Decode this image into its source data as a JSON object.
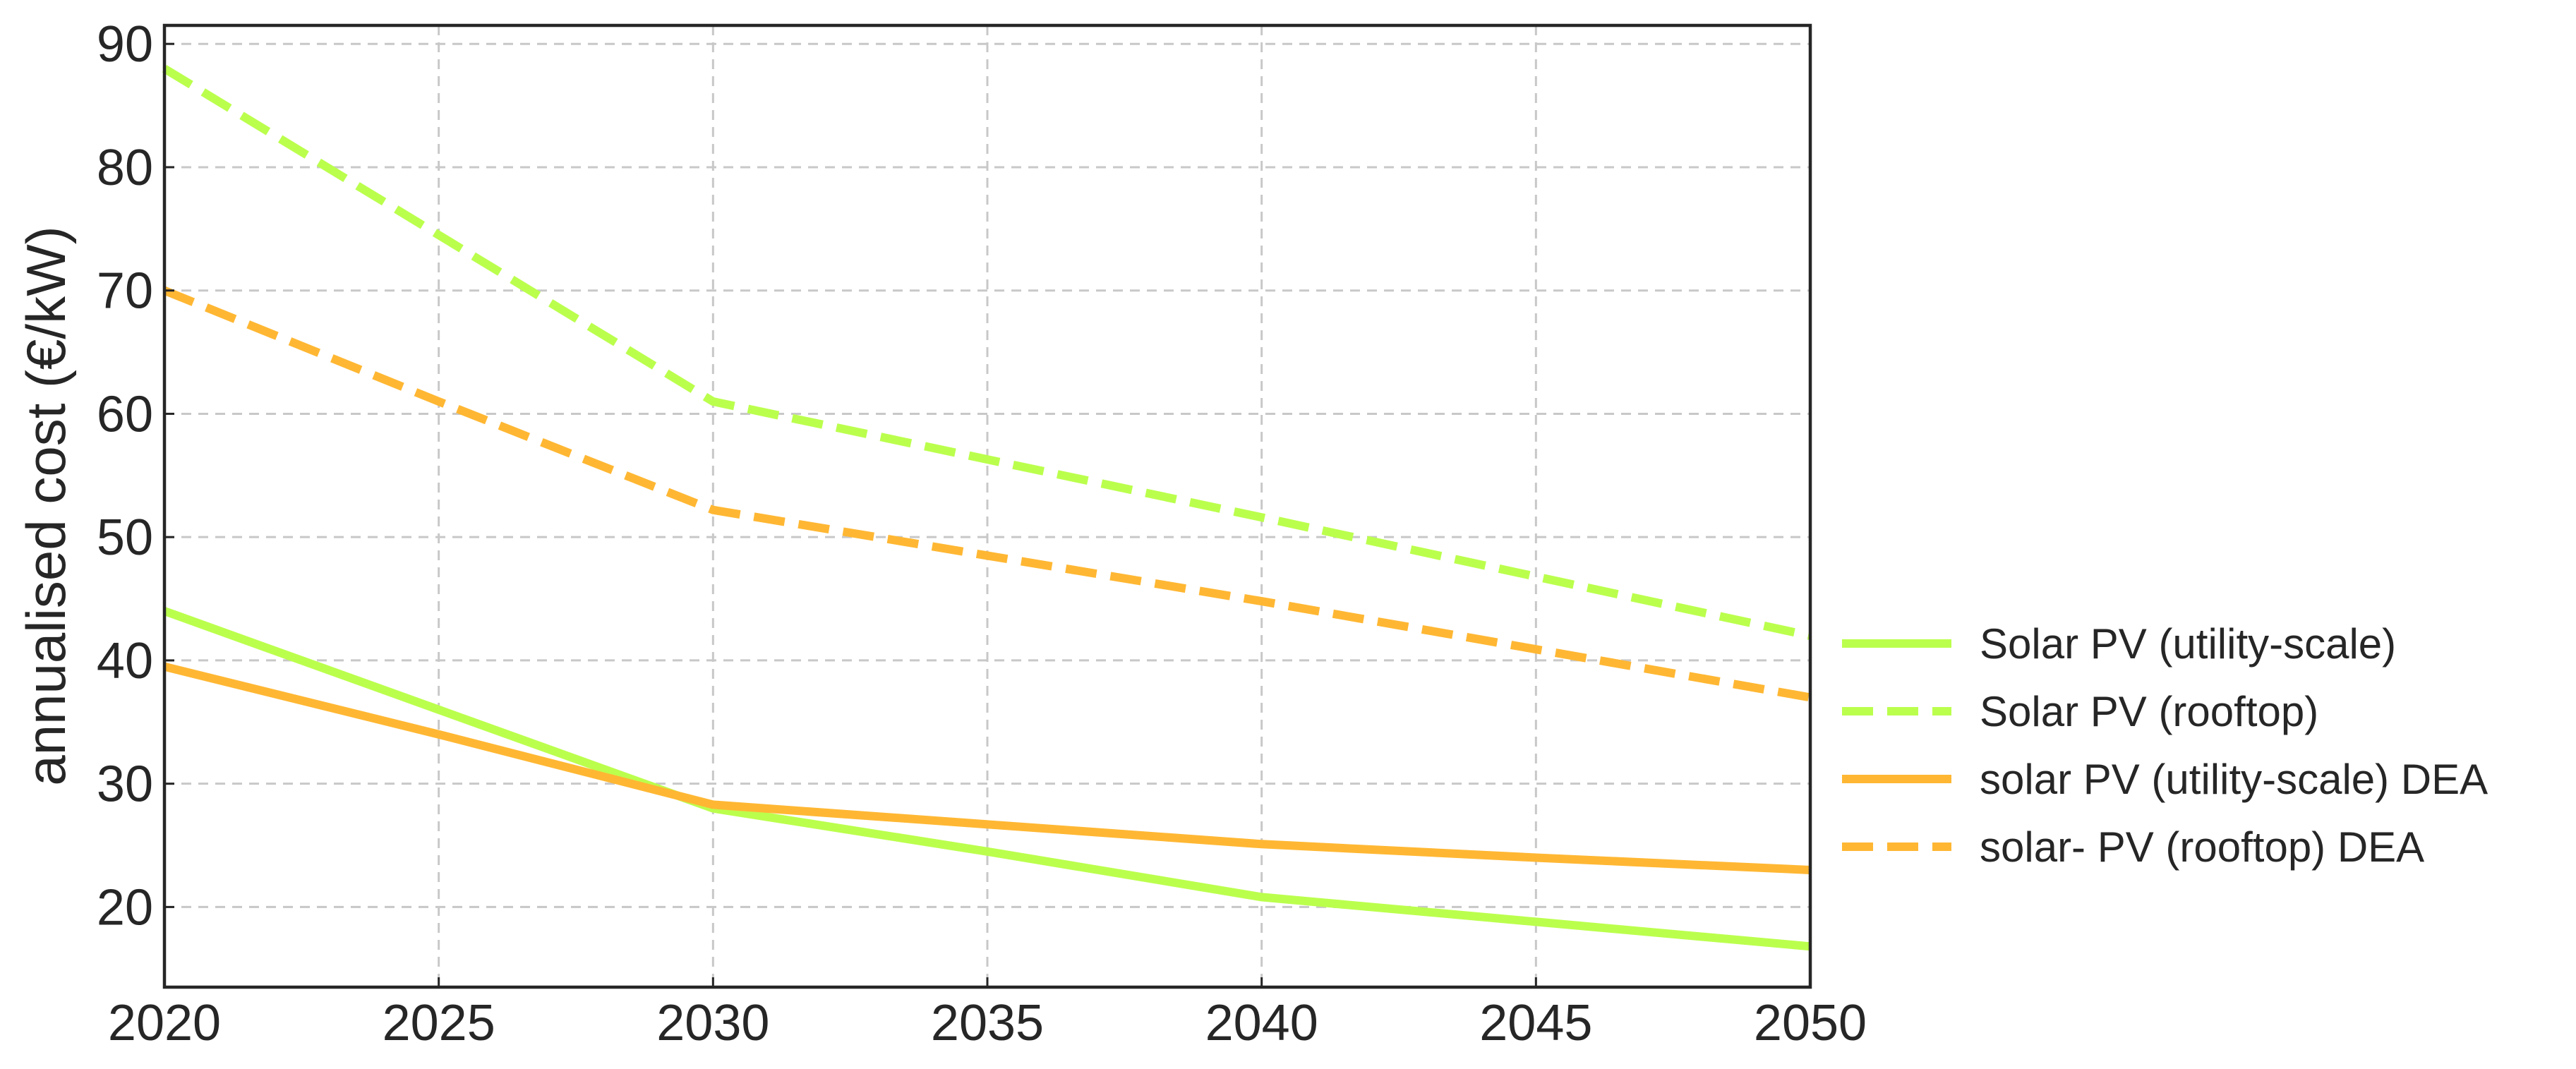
{
  "chart_data": {
    "type": "line",
    "ylabel": "annualised cost (€/kW)",
    "xlabel": "",
    "xlim": [
      2020,
      2050
    ],
    "ylim": [
      13.5,
      91.5
    ],
    "xticks": [
      2020,
      2025,
      2030,
      2035,
      2040,
      2045,
      2050
    ],
    "yticks": [
      20,
      30,
      40,
      50,
      60,
      70,
      80,
      90
    ],
    "grid": true,
    "legend_position": "right",
    "series": [
      {
        "name": "Solar PV (utility-scale)",
        "color": "#bbff4d",
        "style": "solid",
        "x": [
          2020,
          2025,
          2030,
          2035,
          2040,
          2045,
          2050
        ],
        "y": [
          44.0,
          36.0,
          28.0,
          24.5,
          20.8,
          18.8,
          16.8
        ]
      },
      {
        "name": "Solar PV (rooftop)",
        "color": "#bbff4d",
        "style": "dashed",
        "x": [
          2020,
          2025,
          2030,
          2035,
          2040,
          2045,
          2050
        ],
        "y": [
          88.0,
          74.5,
          61.0,
          56.3,
          51.6,
          46.8,
          42.0
        ]
      },
      {
        "name": "solar PV (utility-scale) DEA",
        "color": "#ffb733",
        "style": "solid",
        "x": [
          2020,
          2025,
          2030,
          2035,
          2040,
          2045,
          2050
        ],
        "y": [
          39.5,
          34.0,
          28.3,
          26.7,
          25.1,
          24.0,
          23.0
        ]
      },
      {
        "name": "solar- PV (rooftop) DEA",
        "color": "#ffb733",
        "style": "dashed",
        "x": [
          2020,
          2025,
          2030,
          2035,
          2040,
          2045,
          2050
        ],
        "y": [
          70.0,
          61.0,
          52.2,
          48.5,
          44.8,
          40.9,
          37.0
        ]
      }
    ]
  }
}
